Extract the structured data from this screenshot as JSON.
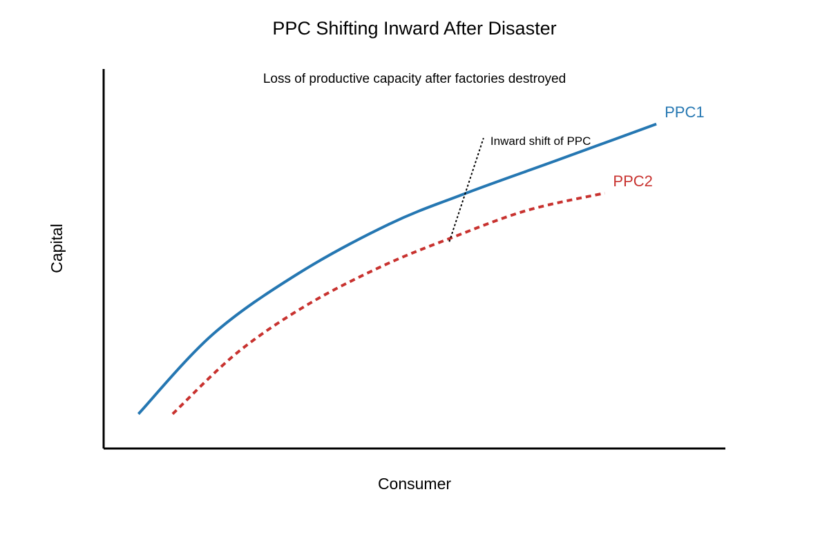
{
  "chart_data": {
    "type": "line",
    "title": "PPC Shifting Inward After Disaster",
    "subtitle": "Loss of productive capacity after factories destroyed",
    "xlabel": "Consumer",
    "ylabel": "Capital",
    "xlim": [
      0,
      100
    ],
    "ylim": [
      0,
      100
    ],
    "grid": false,
    "axis_ticks": false,
    "series": [
      {
        "name": "PPC1",
        "color": "#2577b2",
        "style": "solid",
        "x": [
          5.6,
          17.5,
          31.2,
          45.9,
          58.0,
          73.0,
          88.9
        ],
        "y": [
          9.1,
          30.0,
          46.0,
          59.1,
          67.1,
          76.0,
          85.5
        ]
      },
      {
        "name": "PPC2",
        "color": "#c8322f",
        "style": "dotted",
        "x": [
          11.1,
          21.6,
          33.0,
          45.0,
          55.6,
          68.0,
          80.6
        ],
        "y": [
          9.1,
          25.4,
          38.1,
          48.2,
          55.3,
          62.7,
          67.3
        ]
      }
    ],
    "annotation": {
      "text": "Inward shift of PPC",
      "from": [
        55.6,
        54.5
      ],
      "to": [
        61.1,
        81.8
      ],
      "style": "dotted",
      "color": "#000000"
    }
  }
}
